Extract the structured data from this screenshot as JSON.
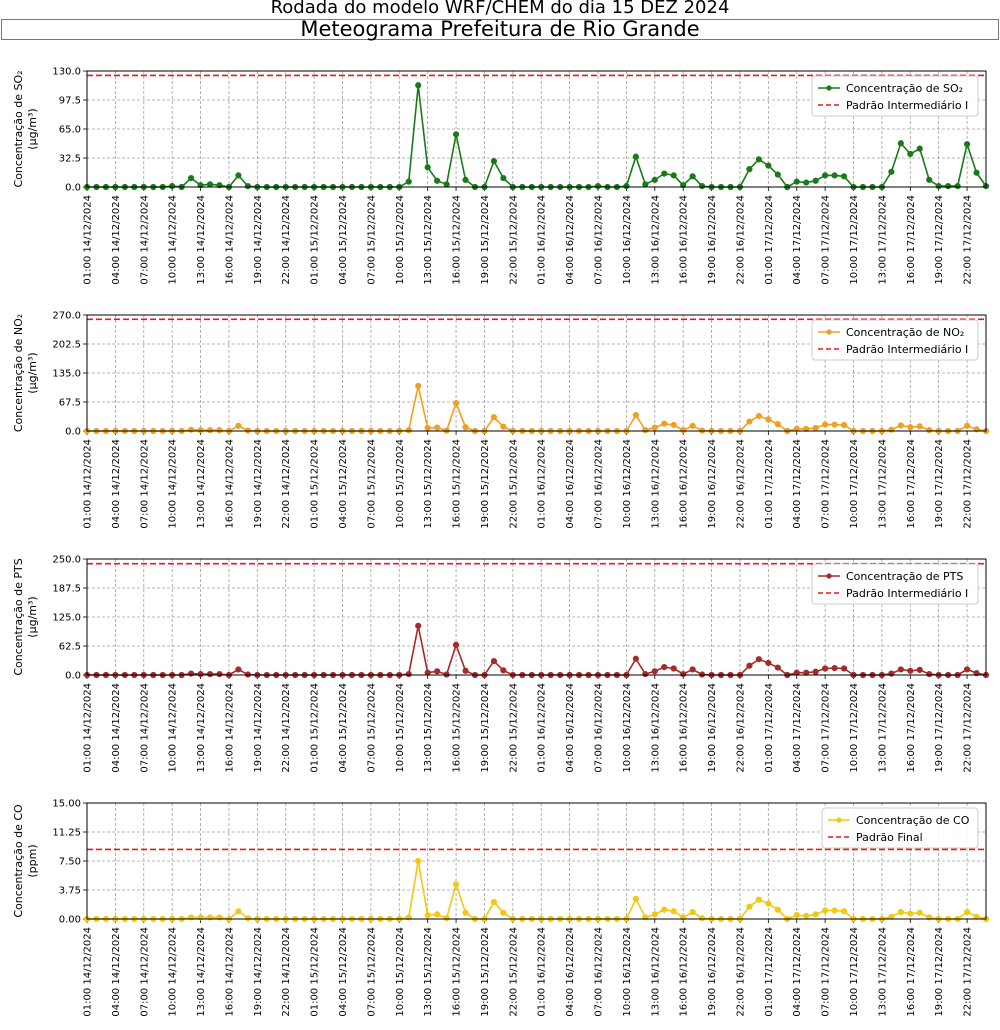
{
  "header": {
    "suptitle": "Rodada do modelo WRF/CHEM do dia 15 DEZ 2024",
    "title": "Meteograma Prefeitura de Rio Grande"
  },
  "x_tick_labels": [
    "01:00 14/12/2024",
    "04:00 14/12/2024",
    "07:00 14/12/2024",
    "10:00 14/12/2024",
    "13:00 14/12/2024",
    "16:00 14/12/2024",
    "19:00 14/12/2024",
    "22:00 14/12/2024",
    "01:00 15/12/2024",
    "04:00 15/12/2024",
    "07:00 15/12/2024",
    "10:00 15/12/2024",
    "13:00 15/12/2024",
    "16:00 15/12/2024",
    "19:00 15/12/2024",
    "22:00 15/12/2024",
    "01:00 16/12/2024",
    "04:00 16/12/2024",
    "07:00 16/12/2024",
    "10:00 16/12/2024",
    "13:00 16/12/2024",
    "16:00 16/12/2024",
    "19:00 16/12/2024",
    "22:00 16/12/2024",
    "01:00 17/12/2024",
    "04:00 17/12/2024",
    "07:00 17/12/2024",
    "10:00 17/12/2024",
    "13:00 17/12/2024",
    "16:00 17/12/2024",
    "19:00 17/12/2024",
    "22:00 17/12/2024"
  ],
  "colors": {
    "limit": "#e41a1c",
    "grid": "#a0a0a0"
  },
  "chart_data": [
    {
      "type": "line",
      "ylabel": "Concentração de SO₂ (µg/m³)",
      "ylabel_line1": "Concentração de SO₂",
      "ylabel_line2": "(µg/m³)",
      "ylim": [
        0,
        130
      ],
      "yticks": [
        "0.0",
        "32.5",
        "65.0",
        "97.5",
        "130.0"
      ],
      "x": "hourly 01:00 14/12/2024 - 23:00 17/12/2024",
      "series": [
        {
          "name": "Concentração de SO₂",
          "color": "#1a7a1a",
          "values": [
            0,
            0,
            0,
            0,
            0,
            0,
            0,
            0,
            0,
            1,
            0,
            10,
            2,
            3,
            2,
            0,
            13,
            1,
            0,
            0,
            0,
            0,
            0,
            0,
            0,
            0,
            0,
            0,
            0,
            0,
            0,
            0,
            0,
            0,
            6,
            114,
            22,
            7,
            3,
            59,
            8,
            0,
            0,
            29,
            10,
            0,
            0,
            0,
            0,
            0,
            0,
            0,
            0,
            0,
            1,
            0,
            0,
            1,
            34,
            3,
            8,
            15,
            13,
            2,
            12,
            1,
            0,
            0,
            0,
            0,
            20,
            31,
            24,
            14,
            0,
            6,
            5,
            7,
            13,
            13,
            12,
            0,
            0,
            0,
            0,
            17,
            49,
            37,
            43,
            8,
            1,
            1,
            1,
            48,
            16,
            1
          ]
        },
        {
          "name": "Padrão Intermediário I",
          "type": "hline",
          "value": 125,
          "color": "#e41a1c"
        }
      ],
      "legend": "top-right",
      "grid": true
    },
    {
      "type": "line",
      "ylabel": "Concentração de NO₂ (µg/m³)",
      "ylabel_line1": "Concentração de NO₂",
      "ylabel_line2": "(µg/m³)",
      "ylim": [
        0,
        270
      ],
      "yticks": [
        "0.0",
        "67.5",
        "135.0",
        "202.5",
        "270.0"
      ],
      "x": "hourly 01:00 14/12/2024 - 23:00 17/12/2024",
      "series": [
        {
          "name": "Concentração de NO₂",
          "color": "#f0a020",
          "values": [
            0,
            0,
            0,
            0,
            0,
            0,
            0,
            0,
            0,
            0,
            0,
            3,
            2,
            2,
            2,
            0,
            12,
            1,
            0,
            0,
            0,
            0,
            0,
            0,
            0,
            0,
            0,
            0,
            0,
            0,
            0,
            0,
            0,
            0,
            2,
            105,
            7,
            8,
            1,
            65,
            9,
            0,
            0,
            32,
            10,
            0,
            0,
            0,
            0,
            0,
            0,
            0,
            0,
            0,
            0,
            0,
            0,
            0,
            37,
            2,
            8,
            17,
            14,
            2,
            12,
            1,
            0,
            0,
            0,
            0,
            22,
            35,
            27,
            16,
            0,
            5,
            5,
            7,
            15,
            15,
            14,
            0,
            0,
            0,
            0,
            3,
            13,
            9,
            11,
            2,
            0,
            0,
            0,
            12,
            4,
            0
          ]
        },
        {
          "name": "Padrão Intermediário I",
          "type": "hline",
          "value": 260,
          "color": "#e41a1c"
        }
      ],
      "legend": "top-right",
      "grid": true
    },
    {
      "type": "line",
      "ylabel": "Concentração de PTS (µg/m³)",
      "ylabel_line1": "Concentração de PTS",
      "ylabel_line2": "(µg/m³)",
      "ylim": [
        0,
        250
      ],
      "yticks": [
        "0.0",
        "62.5",
        "125.0",
        "187.5",
        "250.0"
      ],
      "x": "hourly 01:00 14/12/2024 - 23:00 17/12/2024",
      "series": [
        {
          "name": "Concentração de PTS",
          "color": "#a52a2a",
          "values": [
            0,
            0,
            0,
            0,
            0,
            0,
            0,
            0,
            0,
            0,
            0,
            3,
            2,
            2,
            2,
            0,
            12,
            1,
            0,
            0,
            0,
            0,
            0,
            0,
            0,
            0,
            0,
            0,
            0,
            0,
            0,
            0,
            0,
            0,
            2,
            106,
            5,
            8,
            1,
            65,
            9,
            0,
            0,
            30,
            10,
            0,
            0,
            0,
            0,
            0,
            0,
            0,
            0,
            0,
            0,
            0,
            0,
            0,
            35,
            2,
            8,
            17,
            14,
            2,
            12,
            1,
            0,
            0,
            0,
            0,
            20,
            34,
            26,
            16,
            0,
            5,
            5,
            7,
            14,
            15,
            14,
            0,
            0,
            0,
            0,
            3,
            12,
            9,
            11,
            2,
            0,
            0,
            0,
            12,
            4,
            0
          ]
        },
        {
          "name": "Padrão Intermediário I",
          "type": "hline",
          "value": 240,
          "color": "#e41a1c"
        }
      ],
      "legend": "top-right",
      "grid": true
    },
    {
      "type": "line",
      "ylabel": "Concentração de CO (ppm)",
      "ylabel_line1": "Concentração de CO",
      "ylabel_line2": "(ppm)",
      "ylim": [
        0,
        15
      ],
      "yticks": [
        "0.00",
        "3.75",
        "7.50",
        "11.25",
        "15.00"
      ],
      "x": "hourly 01:00 14/12/2024 - 23:00 17/12/2024",
      "series": [
        {
          "name": "Concentração de CO",
          "color": "#f2c811",
          "values": [
            0,
            0,
            0,
            0,
            0,
            0,
            0,
            0,
            0,
            0,
            0,
            0.2,
            0.2,
            0.2,
            0.2,
            0,
            1.0,
            0.1,
            0,
            0,
            0,
            0,
            0,
            0,
            0,
            0,
            0,
            0,
            0,
            0,
            0,
            0,
            0,
            0,
            0.2,
            7.5,
            0.5,
            0.6,
            0.1,
            4.5,
            0.8,
            0,
            0,
            2.2,
            0.8,
            0,
            0,
            0,
            0,
            0,
            0,
            0,
            0,
            0,
            0,
            0,
            0,
            0,
            2.6,
            0.2,
            0.6,
            1.2,
            1.0,
            0.2,
            0.9,
            0.1,
            0,
            0,
            0,
            0,
            1.6,
            2.5,
            2.0,
            1.2,
            0,
            0.5,
            0.4,
            0.6,
            1.1,
            1.1,
            1.0,
            0,
            0,
            0,
            0,
            0.3,
            0.9,
            0.7,
            0.8,
            0.2,
            0,
            0,
            0,
            0.9,
            0.3,
            0
          ]
        },
        {
          "name": "Padrão Final",
          "type": "hline",
          "value": 9,
          "color": "#e41a1c"
        }
      ],
      "legend": "top-right",
      "grid": true
    }
  ]
}
